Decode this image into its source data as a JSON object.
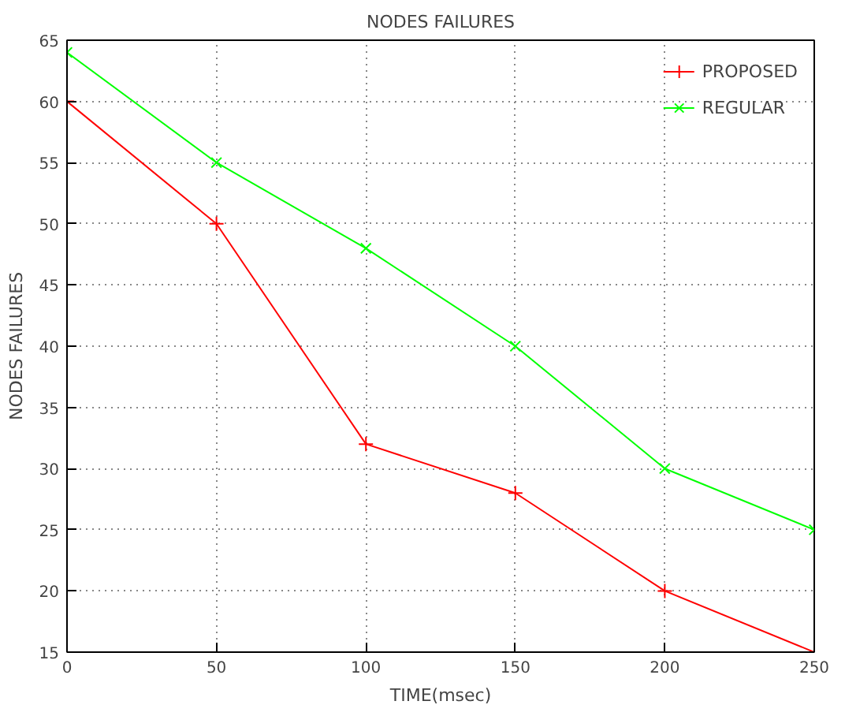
{
  "chart_data": {
    "type": "line",
    "title": "NODES FAILURES",
    "xlabel": "TIME(msec)",
    "ylabel": "NODES FAILURES",
    "x": [
      0,
      50,
      100,
      150,
      200,
      250
    ],
    "series": [
      {
        "name": "PROPOSED",
        "color": "#ff0000",
        "marker": "cross",
        "values": [
          60,
          50,
          32,
          28,
          20,
          15
        ]
      },
      {
        "name": "REGULAR",
        "color": "#00ff00",
        "marker": "x",
        "values": [
          64,
          55,
          48,
          40,
          30,
          25
        ]
      }
    ],
    "xlim": [
      0,
      250
    ],
    "xticks": [
      0,
      50,
      100,
      150,
      200,
      250
    ],
    "ylim": [
      15,
      65
    ],
    "yticks": [
      15,
      20,
      25,
      30,
      35,
      40,
      45,
      50,
      55,
      60,
      65
    ],
    "grid": true,
    "legend": "top right",
    "line_style": "solid"
  }
}
